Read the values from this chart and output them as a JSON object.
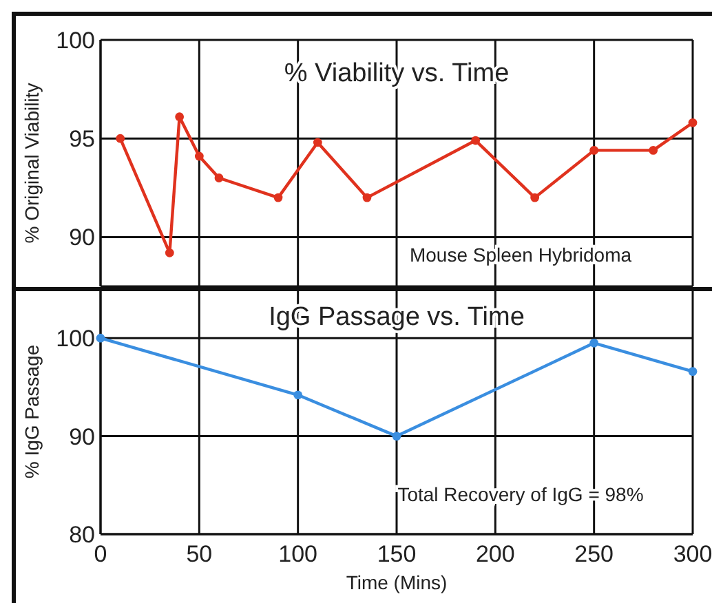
{
  "chart_data": [
    {
      "type": "line",
      "title": "% Viability vs. Time",
      "ylabel": "% Original Viability",
      "x": [
        10,
        35,
        40,
        50,
        60,
        90,
        110,
        135,
        190,
        220,
        250,
        280,
        300
      ],
      "series": [
        {
          "color": "#e0321e",
          "values": [
            95,
            89.2,
            96.1,
            94.1,
            93,
            92,
            94.8,
            92,
            94.9,
            92,
            94.4,
            94.4,
            95.8
          ]
        }
      ],
      "xlim": [
        0,
        300
      ],
      "xticks": [
        0,
        50,
        100,
        150,
        200,
        250,
        300
      ],
      "ylim": [
        87.5,
        100
      ],
      "yticks": [
        90,
        95,
        100
      ],
      "tick_labels": "y",
      "grid": true,
      "marker": "circle",
      "line_style": "solid",
      "annotations": [
        "Mouse Spleen Hybridoma"
      ]
    },
    {
      "type": "line",
      "title": "IgG Passage vs. Time",
      "xlabel": "Time (Mins)",
      "ylabel": "% IgG Passage",
      "x": [
        0,
        100,
        150,
        250,
        300
      ],
      "series": [
        {
          "color": "#3a8ee0",
          "values": [
            100,
            94.2,
            90,
            99.5,
            96.6
          ]
        }
      ],
      "xlim": [
        0,
        300
      ],
      "xticks": [
        0,
        50,
        100,
        150,
        200,
        250,
        300
      ],
      "ylim": [
        80,
        105
      ],
      "yticks": [
        80,
        90,
        100
      ],
      "grid": true,
      "marker": "circle",
      "line_style": "solid",
      "annotations": [
        "Total Recovery of IgG = 98%"
      ]
    }
  ]
}
